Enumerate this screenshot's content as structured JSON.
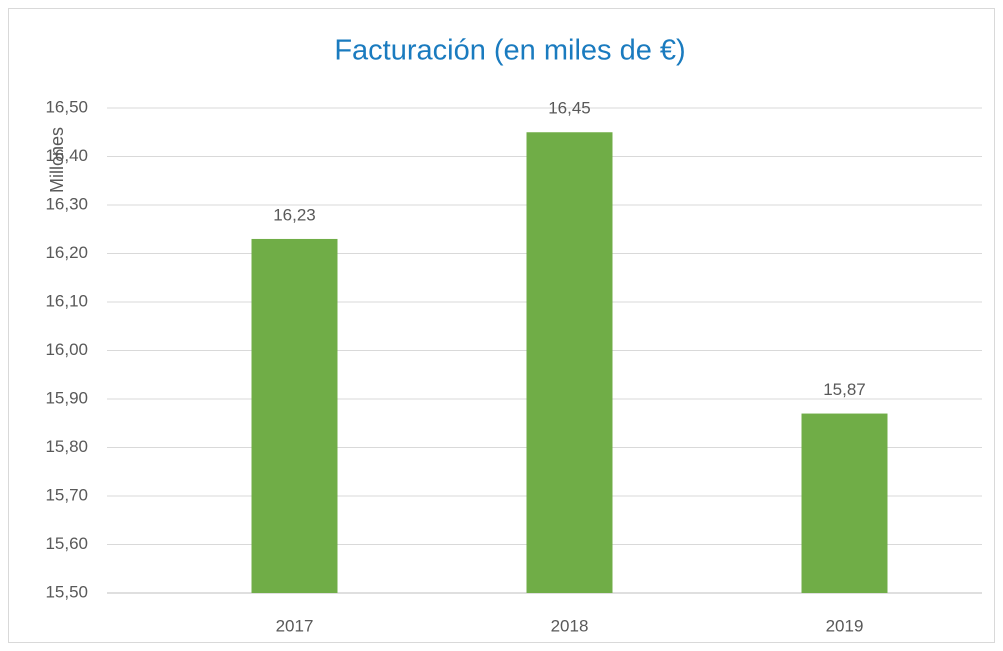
{
  "chart_data": {
    "type": "bar",
    "title": "Facturación (en miles de €)",
    "y_label": "Millones",
    "categories": [
      "2017",
      "2018",
      "2019"
    ],
    "values": [
      16.23,
      16.45,
      15.87
    ],
    "value_labels": [
      "16,23",
      "16,45",
      "15,87"
    ],
    "color": "#70ad47",
    "ylim": [
      15.5,
      16.5
    ],
    "yticks": [
      {
        "value": 15.5,
        "label": "15,50"
      },
      {
        "value": 15.6,
        "label": "15,60"
      },
      {
        "value": 15.7,
        "label": "15,70"
      },
      {
        "value": 15.8,
        "label": "15,80"
      },
      {
        "value": 15.9,
        "label": "15,90"
      },
      {
        "value": 16.0,
        "label": "16,00"
      },
      {
        "value": 16.1,
        "label": "16,10"
      },
      {
        "value": 16.2,
        "label": "16,20"
      },
      {
        "value": 16.3,
        "label": "16,30"
      },
      {
        "value": 16.4,
        "label": "16,40"
      },
      {
        "value": 16.5,
        "label": "16,50"
      }
    ],
    "grid": true
  }
}
